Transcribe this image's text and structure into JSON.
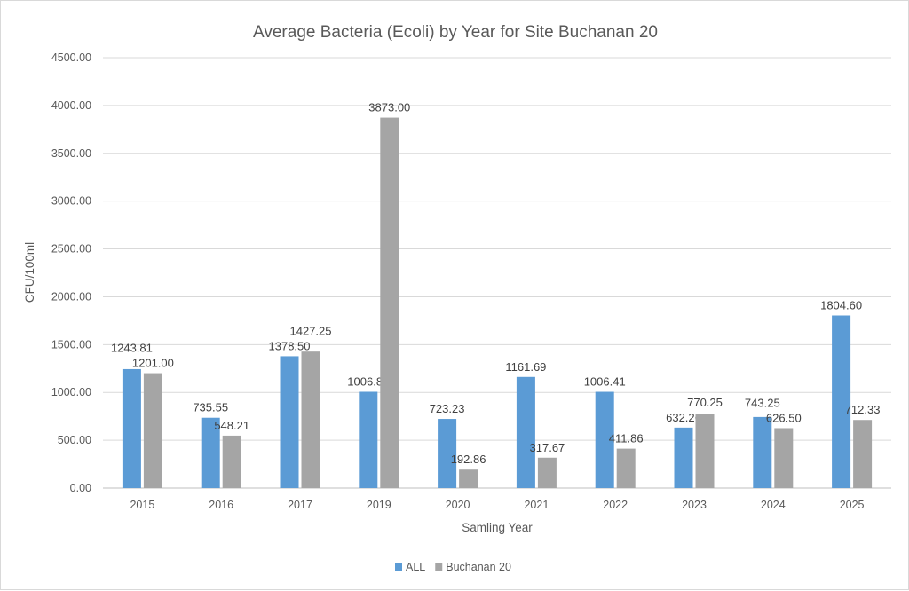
{
  "chart_data": {
    "type": "bar",
    "title": "Average Bacteria (Ecoli) by Year for Site Buchanan 20",
    "xlabel": "Samling Year",
    "ylabel": "CFU/100ml",
    "ylim": [
      0,
      4500
    ],
    "yticks": [
      "0.00",
      "500.00",
      "1000.00",
      "1500.00",
      "2000.00",
      "2500.00",
      "3000.00",
      "3500.00",
      "4000.00",
      "4500.00"
    ],
    "grid": true,
    "legend_position": "bottom",
    "categories": [
      "2015",
      "2016",
      "2017",
      "2019",
      "2020",
      "2021",
      "2022",
      "2023",
      "2024",
      "2025"
    ],
    "series": [
      {
        "name": "ALL",
        "color": "#5b9bd5",
        "values": [
          1243.81,
          735.55,
          1378.5,
          1006.82,
          723.23,
          1161.69,
          1006.41,
          632.26,
          743.25,
          1804.6
        ],
        "labels": [
          "1243.81",
          "735.55",
          "1378.50",
          "1006.82",
          "723.23",
          "1161.69",
          "1006.41",
          "632.26",
          "743.25",
          "1804.60"
        ]
      },
      {
        "name": "Buchanan 20",
        "color": "#a5a5a5",
        "values": [
          1201.0,
          548.21,
          1427.25,
          3873.0,
          192.86,
          317.67,
          411.86,
          770.25,
          626.5,
          712.33
        ],
        "labels": [
          "1201.00",
          "548.21",
          "1427.25",
          "3873.00",
          "192.86",
          "317.67",
          "411.86",
          "770.25",
          "626.50",
          "712.33"
        ]
      }
    ]
  }
}
